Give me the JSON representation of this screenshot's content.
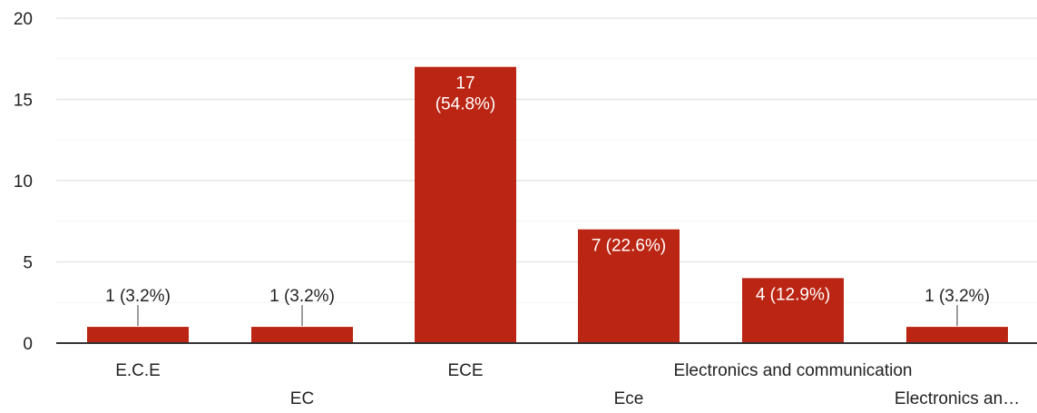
{
  "chart_data": {
    "type": "bar",
    "categories": [
      "E.C.E",
      "EC",
      "ECE",
      "Ece",
      "Electronics and communication",
      "Electronics an…"
    ],
    "values": [
      1,
      1,
      17,
      7,
      4,
      1
    ],
    "data_labels": [
      "1 (3.2%)",
      "1 (3.2%)",
      "17 (54.8%)",
      "7 (22.6%)",
      "4 (12.9%)",
      "1 (3.2%)"
    ],
    "data_labels_multiline": [
      [
        "1 (3.2%)"
      ],
      [
        "1 (3.2%)"
      ],
      [
        "17",
        "(54.8%)"
      ],
      [
        "7 (22.6%)"
      ],
      [
        "4 (12.9%)"
      ],
      [
        "1 (3.2%)"
      ]
    ],
    "ylim": [
      0,
      20
    ],
    "yticks": [
      0,
      5,
      10,
      15,
      20
    ],
    "ytick_labels": [
      "0",
      "5",
      "10",
      "15",
      "20"
    ],
    "bar_color": "#bb2513",
    "grid": true,
    "title": "",
    "xlabel": "",
    "ylabel": ""
  }
}
